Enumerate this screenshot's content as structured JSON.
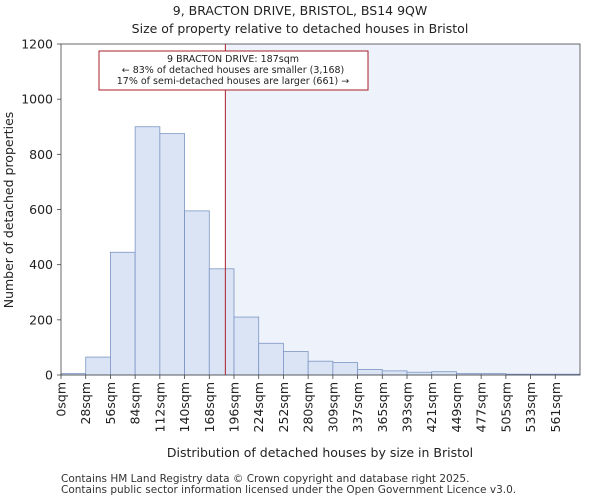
{
  "chart_data": {
    "type": "bar",
    "title": "9, BRACTON DRIVE, BRISTOL, BS14 9QW",
    "subtitle": "Size of property relative to detached houses in Bristol",
    "xlabel": "Distribution of detached houses by size in Bristol",
    "ylabel": "Number of detached properties",
    "ylim": [
      0,
      1200
    ],
    "yticks": [
      0,
      200,
      400,
      600,
      800,
      1000,
      1200
    ],
    "categories": [
      "0sqm",
      "28sqm",
      "56sqm",
      "84sqm",
      "112sqm",
      "140sqm",
      "168sqm",
      "196sqm",
      "224sqm",
      "252sqm",
      "280sqm",
      "309sqm",
      "337sqm",
      "365sqm",
      "393sqm",
      "421sqm",
      "449sqm",
      "477sqm",
      "505sqm",
      "533sqm",
      "561sqm"
    ],
    "values": [
      5,
      65,
      445,
      900,
      875,
      595,
      385,
      210,
      115,
      85,
      50,
      45,
      20,
      15,
      10,
      12,
      5,
      5,
      3,
      3,
      3
    ],
    "bar_fill": "#dbe4f5",
    "bar_edge": "#7b95c4",
    "marker": {
      "value_sqm": 187,
      "bin_position": 6.65,
      "color": "#aa1f2b",
      "lines": [
        "9 BRACTON DRIVE: 187sqm",
        "← 83% of detached houses are smaller (3,168)",
        "17% of semi-detached houses are larger (661) →"
      ]
    },
    "grid": false
  },
  "footer": {
    "line1": "Contains HM Land Registry data © Crown copyright and database right 2025.",
    "line2": "Contains public sector information licensed under the Open Government Licence v3.0."
  }
}
